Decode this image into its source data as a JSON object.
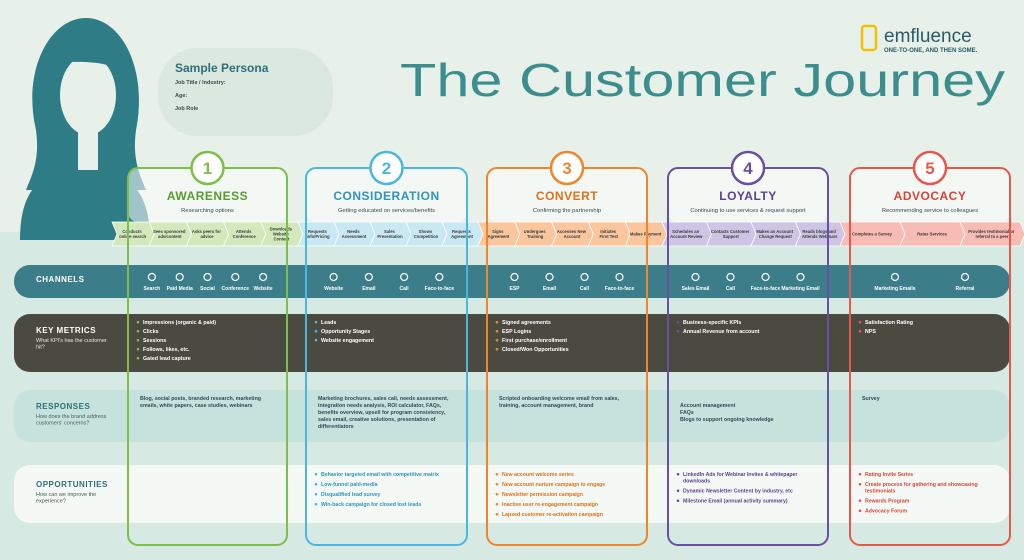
{
  "logo": {
    "name": "emfluence",
    "tagline": "ONE-TO-ONE, AND THEN SOME."
  },
  "title": "The Customer Journey",
  "persona": {
    "name": "Sample Persona",
    "fields": [
      "Job Title / Industry:",
      "Age:",
      "Job Role"
    ]
  },
  "rows": [
    {
      "label": "CHANNELS"
    },
    {
      "label": "KEY METRICS",
      "question": "What KPI's has the customer hit?"
    },
    {
      "label": "RESPONSES",
      "question": "How does the brand address customers' concerns?"
    },
    {
      "label": "OPPORTUNITIES",
      "question": "How can we improve the experience?"
    }
  ],
  "stages": [
    {
      "number": "1",
      "name": "AWARENESS",
      "subtitle": "Researching options",
      "steps": [
        "Conducts online search",
        "Sees sponsored ads/content",
        "Asks peers for advice",
        "Attends Conference",
        "Downloads Website Content"
      ],
      "channels": [
        "Search",
        "Paid Media",
        "Social",
        "Conference",
        "Website"
      ],
      "metrics": [
        "Impressions (organic & paid)",
        "Clicks",
        "Sessions",
        "Follows, likes, etc.",
        "Gated lead capture"
      ],
      "responses": [
        "Blog, social posts, branded research, marketing emails, white papers, case studies, webinars"
      ],
      "opportunities": []
    },
    {
      "number": "2",
      "name": "CONSIDERATION",
      "subtitle": "Getting educated on services/benefits",
      "steps": [
        "Requests info/Pricing",
        "Needs Assessment",
        "Sales Presentation",
        "Shows Competition",
        "Requests Agreement"
      ],
      "channels": [
        "Website",
        "Email",
        "Call",
        "Face-to-face"
      ],
      "metrics": [
        "Leads",
        "Opportunity Stages",
        "Website engagement"
      ],
      "responses": [
        "Marketing brochures, sales call, needs assessment, integration needs analysis, ROI calculator, FAQs, benefits overview, upsell for program consistency, sales email, creative solutions, presentation of differentiators"
      ],
      "opportunities": [
        "Behavior targeted email with competitive matrix",
        "Low-funnel paid-media",
        "Disqualified lead survey",
        "Win-back campaign for closed lost leads"
      ]
    },
    {
      "number": "3",
      "name": "CONVERT",
      "subtitle": "Confirming the partnership",
      "steps": [
        "Signs Agreement",
        "Undergoes Training",
        "Accesses New Account",
        "Initiates First Test",
        "Makes Payment"
      ],
      "channels": [
        "ESP",
        "Email",
        "Call",
        "Face-to-face"
      ],
      "metrics": [
        "Signed agreements",
        "ESP Logins",
        "First purchase/enrollment",
        "Closed/Won Opportunities"
      ],
      "responses": [
        "Scripted onboarding welcome email from sales, training, account management, brand"
      ],
      "opportunities": [
        "New account welcome series",
        "New account nurture campaign to engage",
        "Newsletter permission campaign",
        "Inactive user re-engagement campaign",
        "Lapsed customer re-activation campaign"
      ]
    },
    {
      "number": "4",
      "name": "LOYALTY",
      "subtitle": "Continuing to use services & request support",
      "steps": [
        "Schedules an Account Review",
        "Contacts Customer Support",
        "Makes an Account Change Request",
        "Reads blogs and Attends Webinars"
      ],
      "channels": [
        "Sales Email",
        "Call",
        "Face-to-face",
        "Marketing Email"
      ],
      "metrics": [
        "Business-specific KPIs",
        "Annual Revenue from account"
      ],
      "responses": [
        "Account management",
        "FAQs",
        "Blogs to support ongoing knowledge"
      ],
      "opportunities": [
        "LinkedIn Ads for Webinar Invites & whitepaper downloads",
        "Dynamic Newsletter Content by industry, etc",
        "Milestone Email (annual activity summary)"
      ]
    },
    {
      "number": "5",
      "name": "ADVOCACY",
      "subtitle": "Recommending service to colleagues",
      "steps": [
        "Completes a Survey",
        "Rates Services",
        "Provides testimonial or referral to a peer"
      ],
      "channels": [
        "Marketing Emails",
        "Referral"
      ],
      "metrics": [
        "Satisfaction Rating",
        "NPS"
      ],
      "responses": [
        "Survey"
      ],
      "opportunities": [
        "Rating Invite Series",
        "Create process for gathering and showcasing testimonials",
        "Rewards Program",
        "Advocacy Forum"
      ]
    }
  ]
}
